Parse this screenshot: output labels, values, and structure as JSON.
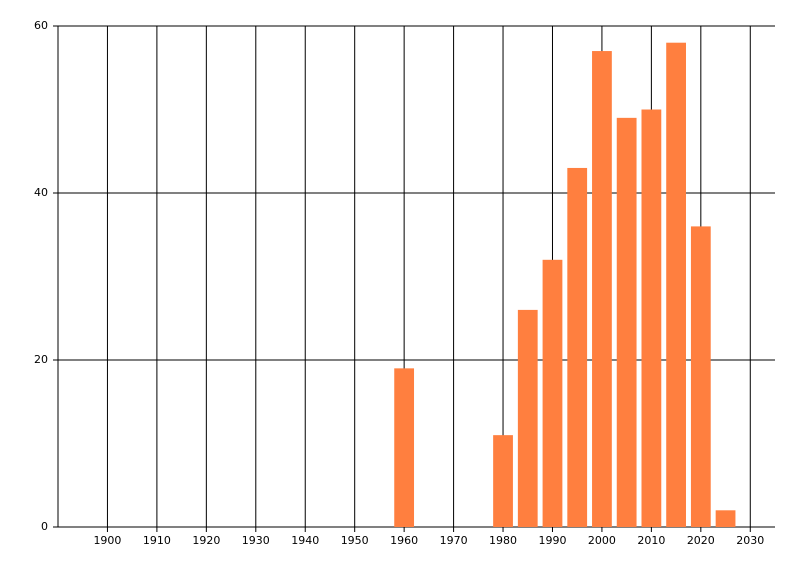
{
  "chart_data": {
    "type": "bar",
    "x": [
      1960,
      1980,
      1985,
      1990,
      1995,
      2000,
      2005,
      2010,
      2015,
      2020,
      2025
    ],
    "values": [
      19,
      11,
      26,
      32,
      43,
      57,
      49,
      50,
      58,
      36,
      2
    ],
    "color": "#ff7f3f",
    "xlim": [
      1890,
      2035
    ],
    "ylim": [
      0,
      60
    ],
    "xticks": [
      1900,
      1910,
      1920,
      1930,
      1940,
      1950,
      1960,
      1970,
      1980,
      1990,
      2000,
      2010,
      2020,
      2030
    ],
    "yticks": [
      0,
      20,
      40,
      60
    ],
    "grid": true
  }
}
